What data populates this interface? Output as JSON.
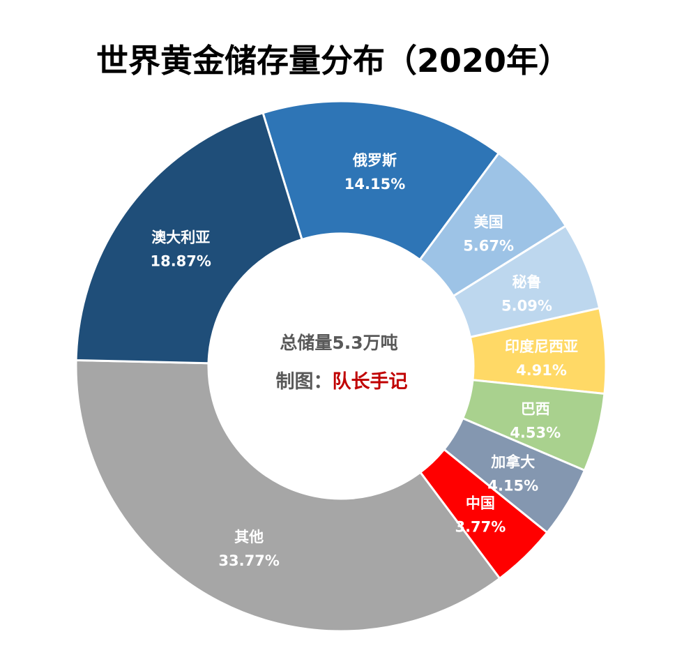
{
  "chart_data": {
    "type": "pie",
    "style": "donut",
    "title": "世界黄金储存量分布（2020年）",
    "center": {
      "total_text": "总储量5.3万吨",
      "credit_label": "制图：",
      "credit_name": "队长手记",
      "credit_color": "#c00000"
    },
    "slices": [
      {
        "label": "俄罗斯",
        "value": 14.15,
        "value_text": "14.15%",
        "color": "#2e75b6"
      },
      {
        "label": "美国",
        "value": 5.67,
        "value_text": "5.67%",
        "color": "#9dc3e6"
      },
      {
        "label": "秘鲁",
        "value": 5.09,
        "value_text": "5.09%",
        "color": "#bdd7ee"
      },
      {
        "label": "印度尼西亚",
        "value": 4.91,
        "value_text": "4.91%",
        "color": "#ffd966"
      },
      {
        "label": "巴西",
        "value": 4.53,
        "value_text": "4.53%",
        "color": "#a9d18e"
      },
      {
        "label": "加拿大",
        "value": 4.15,
        "value_text": "4.15%",
        "color": "#8497b0"
      },
      {
        "label": "中国",
        "value": 3.77,
        "value_text": "3.77%",
        "color": "#ff0000"
      },
      {
        "label": "其他",
        "value": 33.77,
        "value_text": "33.77%",
        "color": "#a6a6a6"
      },
      {
        "label": "澳大利亚",
        "value": 18.87,
        "value_text": "18.87%",
        "color": "#1f4e79"
      }
    ]
  }
}
